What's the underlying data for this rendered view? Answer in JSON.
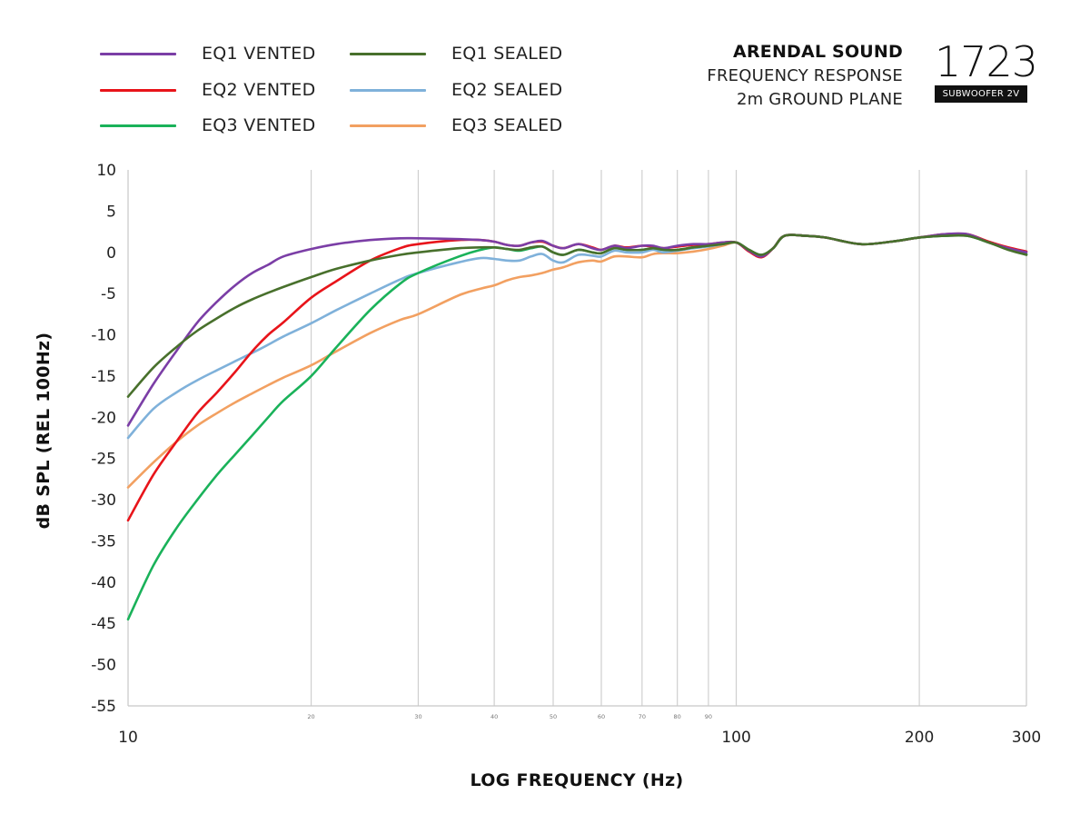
{
  "legend": {
    "items": [
      {
        "label": "EQ1 VENTED",
        "color": "#7b3ea6"
      },
      {
        "label": "EQ1 SEALED",
        "color": "#48702c"
      },
      {
        "label": "EQ2 VENTED",
        "color": "#e8141a"
      },
      {
        "label": "EQ2 SEALED",
        "color": "#7fb1da"
      },
      {
        "label": "EQ3 VENTED",
        "color": "#1ab25a"
      },
      {
        "label": "EQ3 SEALED",
        "color": "#f2a061"
      }
    ]
  },
  "brand": {
    "name": "ARENDAL SOUND",
    "line1": "FREQUENCY RESPONSE",
    "line2": "2m GROUND PLANE",
    "model_number": "1723",
    "model_tag": "SUBWOOFER 2V"
  },
  "chart_data": {
    "type": "line",
    "xscale": "log",
    "xlabel": "LOG FREQUENCY (Hz)",
    "ylabel": "dB SPL (REL 100Hz)",
    "xlim": [
      10,
      300
    ],
    "ylim": [
      -55,
      10
    ],
    "yticks": [
      10,
      5,
      0,
      -5,
      -10,
      -15,
      -20,
      -25,
      -30,
      -35,
      -40,
      -45,
      -50,
      -55
    ],
    "xticks_major": [
      10,
      100,
      200,
      300
    ],
    "xticks_minor": [
      20,
      30,
      40,
      50,
      60,
      70,
      80,
      90
    ],
    "gridlines_x": [
      20,
      30,
      40,
      50,
      60,
      70,
      80,
      90,
      100,
      200
    ],
    "series": [
      {
        "name": "EQ1 VENTED",
        "color": "#7b3ea6",
        "x": [
          10,
          11,
          12,
          13,
          14,
          15,
          16,
          17,
          18,
          20,
          22,
          25,
          28,
          30,
          35,
          38,
          40,
          42,
          44,
          46,
          48,
          50,
          52,
          55,
          58,
          60,
          63,
          66,
          70,
          73,
          76,
          80,
          85,
          90,
          95,
          100,
          105,
          110,
          115,
          120,
          130,
          140,
          160,
          180,
          200,
          220,
          240,
          260,
          280,
          300
        ],
        "y": [
          -21,
          -16,
          -12,
          -8.5,
          -6,
          -4,
          -2.5,
          -1.5,
          -0.5,
          0.4,
          1.0,
          1.5,
          1.7,
          1.7,
          1.6,
          1.5,
          1.3,
          0.9,
          0.8,
          1.2,
          1.4,
          0.8,
          0.5,
          1.0,
          0.5,
          0.3,
          0.8,
          0.5,
          0.8,
          0.8,
          0.5,
          0.8,
          1.0,
          1.0,
          1.2,
          1.2,
          0.2,
          -0.5,
          0.5,
          2.0,
          2.0,
          1.8,
          1.0,
          1.3,
          1.8,
          2.2,
          2.2,
          1.2,
          0.5,
          0.0
        ]
      },
      {
        "name": "EQ1 SEALED",
        "color": "#48702c",
        "x": [
          10,
          11,
          12,
          13,
          14,
          15,
          16,
          17,
          18,
          20,
          22,
          25,
          28,
          30,
          35,
          38,
          40,
          42,
          44,
          46,
          48,
          50,
          52,
          55,
          58,
          60,
          63,
          66,
          70,
          73,
          76,
          80,
          85,
          90,
          95,
          100,
          105,
          110,
          115,
          120,
          130,
          140,
          160,
          180,
          200,
          220,
          240,
          260,
          280,
          300
        ],
        "y": [
          -17.5,
          -14,
          -11.5,
          -9.5,
          -8,
          -6.7,
          -5.7,
          -4.9,
          -4.2,
          -3.0,
          -2.0,
          -1.0,
          -0.3,
          0.0,
          0.5,
          0.6,
          0.6,
          0.4,
          0.3,
          0.6,
          0.7,
          0.0,
          -0.3,
          0.3,
          0.0,
          -0.1,
          0.5,
          0.3,
          0.3,
          0.5,
          0.3,
          0.3,
          0.6,
          0.8,
          1.0,
          1.2,
          0.3,
          -0.3,
          0.5,
          2.0,
          2.0,
          1.8,
          1.0,
          1.3,
          1.8,
          2.0,
          2.0,
          1.2,
          0.3,
          -0.3
        ]
      },
      {
        "name": "EQ2 VENTED",
        "color": "#e8141a",
        "x": [
          10,
          11,
          12,
          13,
          14,
          15,
          16,
          17,
          18,
          20,
          22,
          25,
          28,
          30,
          35,
          38,
          40,
          42,
          44,
          46,
          48,
          50,
          52,
          55,
          58,
          60,
          63,
          66,
          70,
          73,
          76,
          80,
          85,
          90,
          95,
          100,
          105,
          110,
          115,
          120,
          130,
          140,
          160,
          180,
          200,
          220,
          240,
          260,
          280,
          300
        ],
        "y": [
          -32.5,
          -27,
          -23,
          -19.5,
          -17,
          -14.5,
          -12,
          -10,
          -8.5,
          -5.5,
          -3.5,
          -1.0,
          0.5,
          1.0,
          1.5,
          1.5,
          1.3,
          0.9,
          0.8,
          1.2,
          1.3,
          0.8,
          0.5,
          1.0,
          0.6,
          0.3,
          0.8,
          0.6,
          0.8,
          0.7,
          0.5,
          0.7,
          0.9,
          1.0,
          1.2,
          1.2,
          0.1,
          -0.6,
          0.5,
          2.0,
          2.0,
          1.8,
          1.0,
          1.3,
          1.8,
          2.2,
          2.2,
          1.3,
          0.6,
          0.1
        ]
      },
      {
        "name": "EQ2 SEALED",
        "color": "#7fb1da",
        "x": [
          10,
          11,
          12,
          13,
          14,
          15,
          16,
          17,
          18,
          20,
          22,
          25,
          28,
          30,
          35,
          38,
          40,
          42,
          44,
          46,
          48,
          50,
          52,
          55,
          58,
          60,
          63,
          66,
          70,
          73,
          76,
          80,
          85,
          90,
          95,
          100,
          105,
          110,
          115,
          120,
          130,
          140,
          160,
          180,
          200,
          220,
          240,
          260,
          280,
          300
        ],
        "y": [
          -22.5,
          -19,
          -17,
          -15.5,
          -14.3,
          -13.2,
          -12.2,
          -11.2,
          -10.2,
          -8.6,
          -7.0,
          -5.0,
          -3.3,
          -2.5,
          -1.2,
          -0.7,
          -0.8,
          -1.0,
          -1.0,
          -0.5,
          -0.2,
          -1.0,
          -1.2,
          -0.3,
          -0.4,
          -0.5,
          0.2,
          0.0,
          0.0,
          0.3,
          0.0,
          0.2,
          0.5,
          0.7,
          1.0,
          1.2,
          0.3,
          -0.3,
          0.5,
          2.0,
          2.0,
          1.8,
          1.0,
          1.3,
          1.8,
          2.0,
          2.0,
          1.3,
          0.5,
          -0.3
        ]
      },
      {
        "name": "EQ3 VENTED",
        "color": "#1ab25a",
        "x": [
          10,
          11,
          12,
          13,
          14,
          15,
          16,
          17,
          18,
          20,
          22,
          25,
          28,
          30,
          35,
          38,
          40,
          42,
          44,
          46,
          48,
          50,
          52,
          55,
          58,
          60,
          63,
          66,
          70,
          73,
          76,
          80,
          85,
          90,
          95,
          100,
          105,
          110,
          115,
          120,
          130,
          140,
          160,
          180,
          200,
          220,
          240,
          260,
          280,
          300
        ],
        "y": [
          -44.5,
          -38,
          -33.5,
          -30,
          -27,
          -24.5,
          -22.2,
          -20,
          -18,
          -15,
          -11.5,
          -7.0,
          -3.8,
          -2.5,
          -0.5,
          0.3,
          0.6,
          0.4,
          0.2,
          0.5,
          0.7,
          0.0,
          -0.3,
          0.3,
          0.0,
          -0.1,
          0.5,
          0.3,
          0.3,
          0.5,
          0.3,
          0.3,
          0.6,
          0.8,
          1.0,
          1.2,
          0.3,
          -0.3,
          0.5,
          2.0,
          2.0,
          1.8,
          1.0,
          1.3,
          1.8,
          2.0,
          2.0,
          1.2,
          0.4,
          -0.2
        ]
      },
      {
        "name": "EQ3 SEALED",
        "color": "#f2a061",
        "x": [
          10,
          11,
          12,
          13,
          14,
          15,
          16,
          17,
          18,
          20,
          22,
          25,
          28,
          30,
          35,
          38,
          40,
          42,
          44,
          46,
          48,
          50,
          52,
          55,
          58,
          60,
          63,
          66,
          70,
          73,
          76,
          80,
          85,
          90,
          95,
          100,
          105,
          110,
          115,
          120,
          130,
          140,
          160,
          180,
          200,
          220,
          240,
          260,
          280,
          300
        ],
        "y": [
          -28.5,
          -25.5,
          -23,
          -21,
          -19.5,
          -18.2,
          -17.1,
          -16.1,
          -15.2,
          -13.7,
          -12,
          -9.8,
          -8.2,
          -7.5,
          -5.2,
          -4.4,
          -4.0,
          -3.4,
          -3.0,
          -2.8,
          -2.5,
          -2.1,
          -1.8,
          -1.2,
          -1.0,
          -1.1,
          -0.5,
          -0.5,
          -0.6,
          -0.2,
          -0.1,
          -0.1,
          0.1,
          0.4,
          0.8,
          1.2,
          0.3,
          -0.3,
          0.5,
          2.0,
          2.0,
          1.8,
          1.0,
          1.3,
          1.8,
          2.0,
          2.0,
          1.3,
          0.5,
          -0.3
        ]
      }
    ]
  }
}
